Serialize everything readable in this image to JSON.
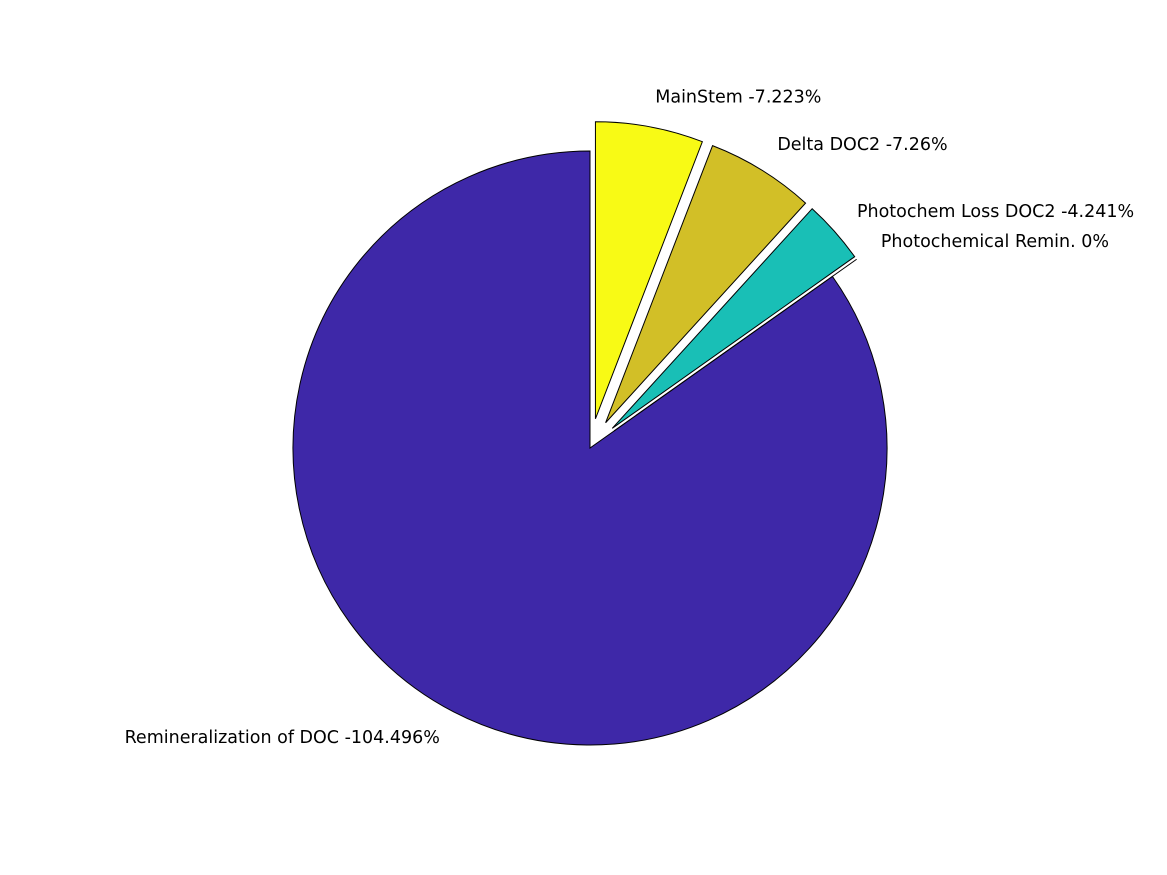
{
  "chart_data": {
    "type": "pie",
    "title": "",
    "slices": [
      {
        "label": "Remineralization of DOC -104.496%",
        "value": 104.496,
        "color": "#3e28a8",
        "exploded": false
      },
      {
        "label": "Photochemical Remin. 0%",
        "value": 0,
        "color": "#3e28a8",
        "exploded": true
      },
      {
        "label": "Photochem Loss DOC2 -4.241%",
        "value": 4.241,
        "color": "#19bfb6",
        "exploded": true
      },
      {
        "label": "Delta DOC2 -7.26%",
        "value": 7.26,
        "color": "#d2bf27",
        "exploded": true
      },
      {
        "label": "MainStem -7.223%",
        "value": 7.223,
        "color": "#f8fa15",
        "exploded": true
      }
    ],
    "legend": "none",
    "grid": false
  }
}
